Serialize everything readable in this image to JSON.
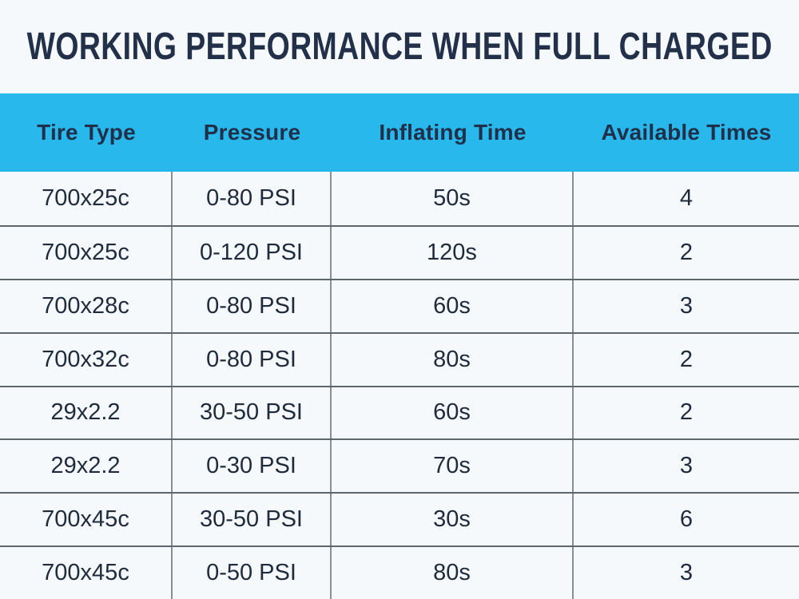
{
  "colors": {
    "page_bg": "#f6f9fc",
    "header_bg": "#29b8eb",
    "heading_text": "#223049",
    "body_text": "#1f2b3d",
    "row_divider": "#5d656e",
    "column_divider": "#868e97"
  },
  "chart_data": {
    "type": "table",
    "title": "WORKING PERFORMANCE WHEN FULL CHARGED",
    "columns": [
      "Tire Type",
      "Pressure",
      "Inflating Time",
      "Available Times"
    ],
    "rows": [
      [
        "700x25c",
        "0-80 PSI",
        "50s",
        "4"
      ],
      [
        "700x25c",
        "0-120 PSI",
        "120s",
        "2"
      ],
      [
        "700x28c",
        "0-80 PSI",
        "60s",
        "3"
      ],
      [
        "700x32c",
        "0-80 PSI",
        "80s",
        "2"
      ],
      [
        "29x2.2",
        "30-50 PSI",
        "60s",
        "2"
      ],
      [
        "29x2.2",
        "0-30 PSI",
        "70s",
        "3"
      ],
      [
        "700x45c",
        "30-50 PSI",
        "30s",
        "6"
      ],
      [
        "700x45c",
        "0-50 PSI",
        "80s",
        "3"
      ]
    ]
  }
}
